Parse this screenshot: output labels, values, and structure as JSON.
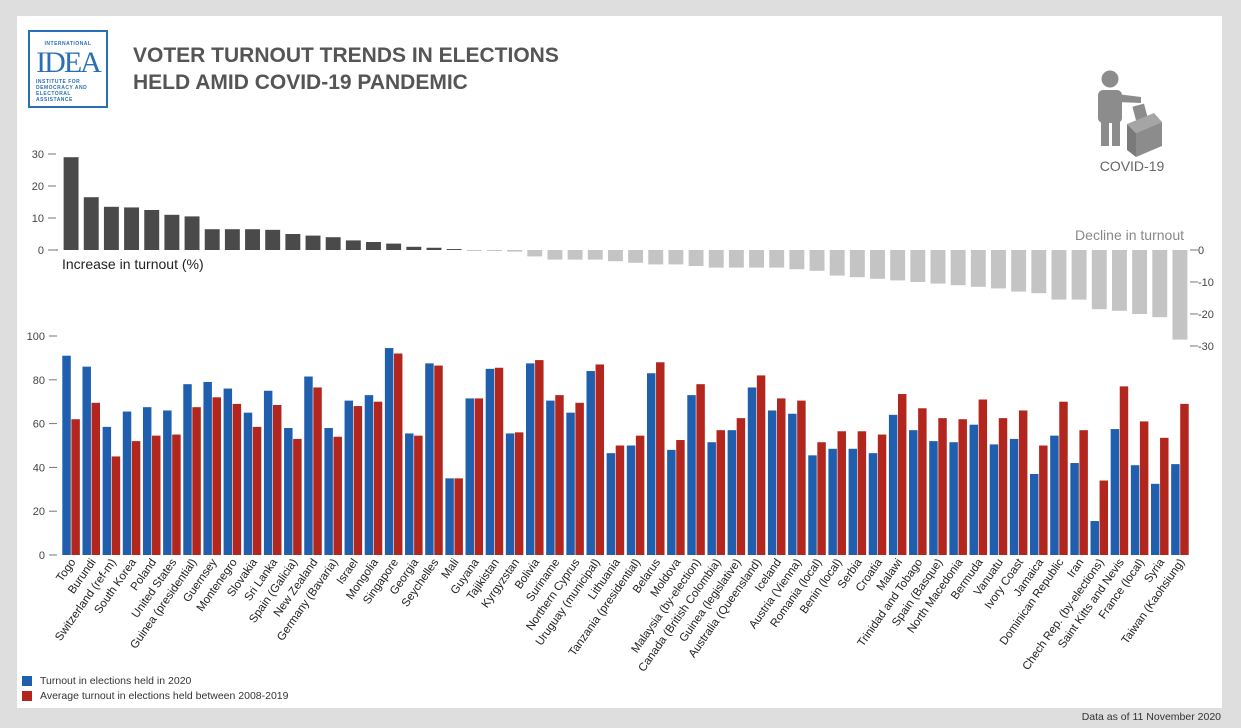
{
  "title": {
    "line1": "VOTER TURNOUT TRENDS IN ELECTIONS",
    "line2": "HELD AMID COVID-19 PANDEMIC"
  },
  "logo": {
    "top": "INTERNATIONAL",
    "main": "IDEA",
    "sub": [
      "INSTITUTE FOR",
      "DEMOCRACY AND",
      "ELECTORAL",
      "ASSISTANCE"
    ]
  },
  "covid_label": "COVID-19",
  "footnote": "Data as of 11 November 2020",
  "colors": {
    "increase": "#4a4a4a",
    "decline": "#c4c4c4",
    "turnout_2020": "#1f5fae",
    "average_2008_2019": "#b3261e",
    "icon": "#8c8c8c"
  },
  "chart_data": [
    {
      "type": "bar",
      "chart": "change",
      "ylim": [
        -30,
        30
      ],
      "y_ticks_left": [
        "30",
        "20",
        "10",
        "0"
      ],
      "y_ticks_right": [
        "0",
        "-10",
        "-20",
        "-30"
      ],
      "label_increase": "Increase in turnout (%)",
      "label_decline": "Decline in turnout",
      "values": [
        29,
        16.5,
        13.5,
        13.3,
        12.5,
        11,
        10.5,
        6.5,
        6.5,
        6.5,
        6.3,
        5,
        4.5,
        4,
        3,
        2.5,
        2,
        1,
        0.7,
        0.3,
        -0.3,
        -0.3,
        -0.5,
        -2,
        -3,
        -3,
        -3,
        -3.5,
        -4,
        -4.5,
        -4.5,
        -5,
        -5.5,
        -5.5,
        -5.5,
        -5.5,
        -6,
        -6.5,
        -8,
        -8.5,
        -9,
        -9.5,
        -10,
        -10.5,
        -11,
        -11.5,
        -12,
        -13,
        -13.5,
        -15.5,
        -15.5,
        -18.5,
        -19,
        -20,
        -21,
        -28
      ]
    },
    {
      "type": "bar",
      "chart": "turnout",
      "ylim": [
        0,
        100
      ],
      "y_ticks": [
        "100",
        "80",
        "60",
        "40",
        "20",
        "0"
      ],
      "categories": [
        "Togo",
        "Burundi",
        "Switzerland (ref-m)",
        "South Korea",
        "Poland",
        "United States",
        "Guinea (presidential)",
        "Guernsey",
        "Montenegro",
        "Slovakia",
        "Sri Lanka",
        "Spain (Galicia)",
        "New Zealand",
        "Germany (Bavaria)",
        "Israel",
        "Mongolia",
        "Singapore",
        "Georgia",
        "Seychelles",
        "Mali",
        "Guyana",
        "Tajikistan",
        "Kyrgyzstan",
        "Bolivia",
        "Suriname",
        "Northern Cyprus",
        "Uruguay (municipal)",
        "Lithuania",
        "Tanzania (presidential)",
        "Belarus",
        "Moldova",
        "Malaysia (by-election)",
        "Canada (British Colombia)",
        "Guinea (legislative)",
        "Australia (Queensland)",
        "Iceland",
        "Austria (Vienna)",
        "Romania (local)",
        "Benin (local)",
        "Serbia",
        "Croatia",
        "Malawi",
        "Trinidad and Tobago",
        "Spain (Basque)",
        "North Macedonia",
        "Bermuda",
        "Vanuatu",
        "Ivory Coast",
        "Jamaica",
        "Dominican Republic",
        "Iran",
        "Chech Rep. (by-elections)",
        "Saint Kitts and Nevis",
        "France (local)",
        "Syria",
        "Taiwan (Kaohsiung)"
      ],
      "series": [
        {
          "name": "Turnout in elections held in 2020",
          "values": [
            91,
            86,
            58.5,
            65.5,
            67.5,
            66,
            78,
            79,
            76,
            65,
            75,
            58,
            81.5,
            58,
            70.5,
            73,
            94.5,
            55.5,
            87.5,
            35,
            71.5,
            85,
            55.5,
            87.5,
            70.5,
            65,
            84,
            46.5,
            50,
            83,
            48,
            73,
            51.5,
            57,
            76.5,
            66,
            64.5,
            45.5,
            48.5,
            48.5,
            46.5,
            64,
            57,
            52,
            51.5,
            59.5,
            50.5,
            53,
            37,
            54.5,
            42,
            15.5,
            57.5,
            41,
            32.5,
            41.5
          ]
        },
        {
          "name": "Average turnout in elections held between 2008-2019",
          "values": [
            62,
            69.5,
            45,
            52,
            54.5,
            55,
            67.5,
            72,
            69,
            58.5,
            68.5,
            53,
            76.5,
            54,
            68,
            70,
            92,
            54.5,
            86.5,
            35,
            71.5,
            85.5,
            56,
            89,
            73,
            69.5,
            87,
            50,
            54.5,
            88,
            52.5,
            78,
            57,
            62.5,
            82,
            71.5,
            70.5,
            51.5,
            56.5,
            56.5,
            55,
            73.5,
            67,
            62.5,
            62,
            71,
            62.5,
            66,
            50,
            70,
            57,
            34,
            77,
            61,
            53.5,
            69
          ]
        }
      ]
    }
  ]
}
